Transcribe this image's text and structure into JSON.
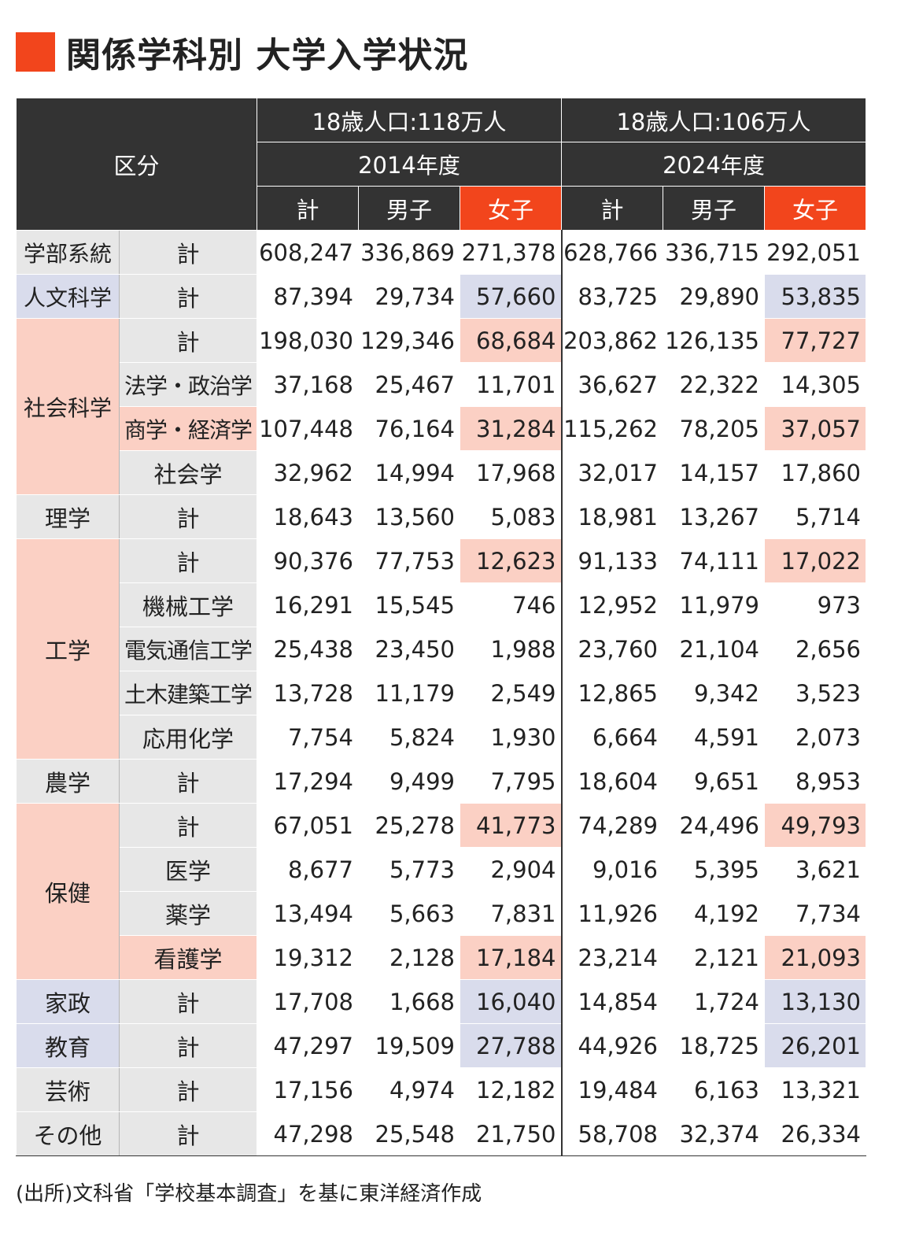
{
  "title": "関係学科別 大学入学状況",
  "source": "(出所)文科省「学校基本調査」を基に東洋経済作成",
  "colors": {
    "accent": "#f2451c",
    "header_bg": "#333333",
    "highlight_female": "#fbd0c4",
    "highlight_blue": "#d9dcec",
    "label_gray": "#e7e7e7"
  },
  "header": {
    "division": "区分",
    "periods": [
      {
        "population": "18歳人口:118万人",
        "year": "2014",
        "year_unit": "年度"
      },
      {
        "population": "18歳人口:106万人",
        "year": "2024",
        "year_unit": "年度"
      }
    ],
    "columns": [
      "計",
      "男子",
      "女子",
      "計",
      "男子",
      "女子"
    ]
  },
  "chart_data": {
    "type": "table",
    "title": "関係学科別 大学入学状況",
    "column_groups": [
      "2014年度",
      "2024年度"
    ],
    "columns": [
      "計",
      "男子",
      "女子"
    ],
    "rows": [
      {
        "category": "学部系統",
        "sub": "計",
        "values": [
          "608,247",
          "336,869",
          "271,378",
          "628,766",
          "336,715",
          "292,051"
        ]
      },
      {
        "category": "人文科学",
        "sub": "計",
        "values": [
          "87,394",
          "29,734",
          "57,660",
          "83,725",
          "29,890",
          "53,835"
        ]
      },
      {
        "category": "社会科学",
        "sub": "計",
        "values": [
          "198,030",
          "129,346",
          "68,684",
          "203,862",
          "126,135",
          "77,727"
        ]
      },
      {
        "category": "社会科学",
        "sub": "法学・政治学",
        "values": [
          "37,168",
          "25,467",
          "11,701",
          "36,627",
          "22,322",
          "14,305"
        ]
      },
      {
        "category": "社会科学",
        "sub": "商学・経済学",
        "values": [
          "107,448",
          "76,164",
          "31,284",
          "115,262",
          "78,205",
          "37,057"
        ]
      },
      {
        "category": "社会科学",
        "sub": "社会学",
        "values": [
          "32,962",
          "14,994",
          "17,968",
          "32,017",
          "14,157",
          "17,860"
        ]
      },
      {
        "category": "理学",
        "sub": "計",
        "values": [
          "18,643",
          "13,560",
          "5,083",
          "18,981",
          "13,267",
          "5,714"
        ]
      },
      {
        "category": "工学",
        "sub": "計",
        "values": [
          "90,376",
          "77,753",
          "12,623",
          "91,133",
          "74,111",
          "17,022"
        ]
      },
      {
        "category": "工学",
        "sub": "機械工学",
        "values": [
          "16,291",
          "15,545",
          "746",
          "12,952",
          "11,979",
          "973"
        ]
      },
      {
        "category": "工学",
        "sub": "電気通信工学",
        "values": [
          "25,438",
          "23,450",
          "1,988",
          "23,760",
          "21,104",
          "2,656"
        ]
      },
      {
        "category": "工学",
        "sub": "土木建築工学",
        "values": [
          "13,728",
          "11,179",
          "2,549",
          "12,865",
          "9,342",
          "3,523"
        ]
      },
      {
        "category": "工学",
        "sub": "応用化学",
        "values": [
          "7,754",
          "5,824",
          "1,930",
          "6,664",
          "4,591",
          "2,073"
        ]
      },
      {
        "category": "農学",
        "sub": "計",
        "values": [
          "17,294",
          "9,499",
          "7,795",
          "18,604",
          "9,651",
          "8,953"
        ]
      },
      {
        "category": "保健",
        "sub": "計",
        "values": [
          "67,051",
          "25,278",
          "41,773",
          "74,289",
          "24,496",
          "49,793"
        ]
      },
      {
        "category": "保健",
        "sub": "医学",
        "values": [
          "8,677",
          "5,773",
          "2,904",
          "9,016",
          "5,395",
          "3,621"
        ]
      },
      {
        "category": "保健",
        "sub": "薬学",
        "values": [
          "13,494",
          "5,663",
          "7,831",
          "11,926",
          "4,192",
          "7,734"
        ]
      },
      {
        "category": "保健",
        "sub": "看護学",
        "values": [
          "19,312",
          "2,128",
          "17,184",
          "23,214",
          "2,121",
          "21,093"
        ]
      },
      {
        "category": "家政",
        "sub": "計",
        "values": [
          "17,708",
          "1,668",
          "16,040",
          "14,854",
          "1,724",
          "13,130"
        ]
      },
      {
        "category": "教育",
        "sub": "計",
        "values": [
          "47,297",
          "19,509",
          "27,788",
          "44,926",
          "18,725",
          "26,201"
        ]
      },
      {
        "category": "芸術",
        "sub": "計",
        "values": [
          "17,156",
          "4,974",
          "12,182",
          "19,484",
          "6,163",
          "13,321"
        ]
      },
      {
        "category": "その他",
        "sub": "計",
        "values": [
          "47,298",
          "25,548",
          "21,750",
          "58,708",
          "32,374",
          "26,334"
        ]
      }
    ],
    "category_groups": [
      {
        "label": "学部系統",
        "start": 0,
        "span": 1,
        "shade": "gray"
      },
      {
        "label": "人文科学",
        "start": 1,
        "span": 1,
        "shade": "blue"
      },
      {
        "label": "社会科学",
        "start": 2,
        "span": 4,
        "shade": "pink"
      },
      {
        "label": "理学",
        "start": 6,
        "span": 1,
        "shade": "gray"
      },
      {
        "label": "工学",
        "start": 7,
        "span": 5,
        "shade": "pink"
      },
      {
        "label": "農学",
        "start": 12,
        "span": 1,
        "shade": "gray"
      },
      {
        "label": "保健",
        "start": 13,
        "span": 4,
        "shade": "pink"
      },
      {
        "label": "家政",
        "start": 17,
        "span": 1,
        "shade": "blue"
      },
      {
        "label": "教育",
        "start": 18,
        "span": 1,
        "shade": "blue"
      },
      {
        "label": "芸術",
        "start": 19,
        "span": 1,
        "shade": "gray"
      },
      {
        "label": "その他",
        "start": 20,
        "span": 1,
        "shade": "gray"
      }
    ],
    "highlights": [
      {
        "row": 1,
        "cols": [
          2,
          5
        ],
        "color": "blue"
      },
      {
        "row": 2,
        "cols": [
          2,
          5
        ],
        "color": "pink"
      },
      {
        "row": 4,
        "cols": [
          2,
          5
        ],
        "color": "pink",
        "sub": true
      },
      {
        "row": 7,
        "cols": [
          2,
          5
        ],
        "color": "pink"
      },
      {
        "row": 13,
        "cols": [
          2,
          5
        ],
        "color": "pink"
      },
      {
        "row": 16,
        "cols": [
          2,
          5
        ],
        "color": "pink",
        "sub": true
      },
      {
        "row": 17,
        "cols": [
          2,
          5
        ],
        "color": "blue"
      },
      {
        "row": 18,
        "cols": [
          2,
          5
        ],
        "color": "blue"
      }
    ]
  }
}
